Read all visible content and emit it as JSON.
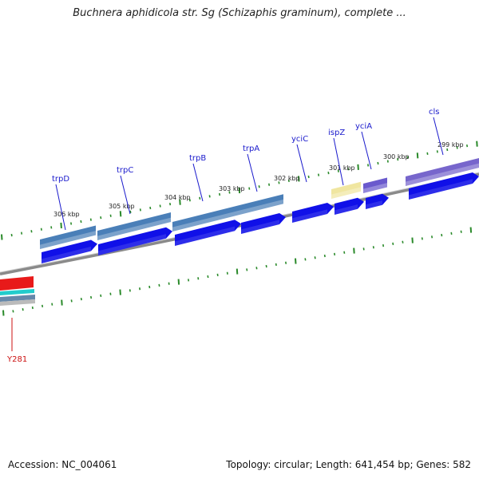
{
  "title": "Buchnera aphidicola str. Sg (Schizaphis graminum), complete ...",
  "accession": "Accession: NC_004061",
  "topology": "Topology: circular; Length: 641,454 bp; Genes: 582",
  "genes": [
    {
      "name": "trpD"
    },
    {
      "name": "trpC"
    },
    {
      "name": "trpB"
    },
    {
      "name": "trpA"
    },
    {
      "name": "yciC"
    },
    {
      "name": "ispZ"
    },
    {
      "name": "yciA"
    },
    {
      "name": "cls"
    }
  ],
  "scale_labels": [
    "306 kbp",
    "305 kbp",
    "304 kbp",
    "303 kbp",
    "302 kbp",
    "301 kbp",
    "300 kbp",
    "299 kbp"
  ],
  "snp": {
    "name": "Y281"
  },
  "colors": {
    "cds": "#1010e8",
    "operon": "#4a7fb8",
    "ispZ_feature": "#f0e6a0",
    "yciA_feature": "#6a5acd",
    "cls_feature": "#7766cc",
    "backbone": "#7a7a7a",
    "tick": "#2a8a2a",
    "snp": "#e81a1a",
    "cyan_band": "#22cccc",
    "gene_label": "#1a1acc",
    "snp_label": "#cc1111"
  }
}
